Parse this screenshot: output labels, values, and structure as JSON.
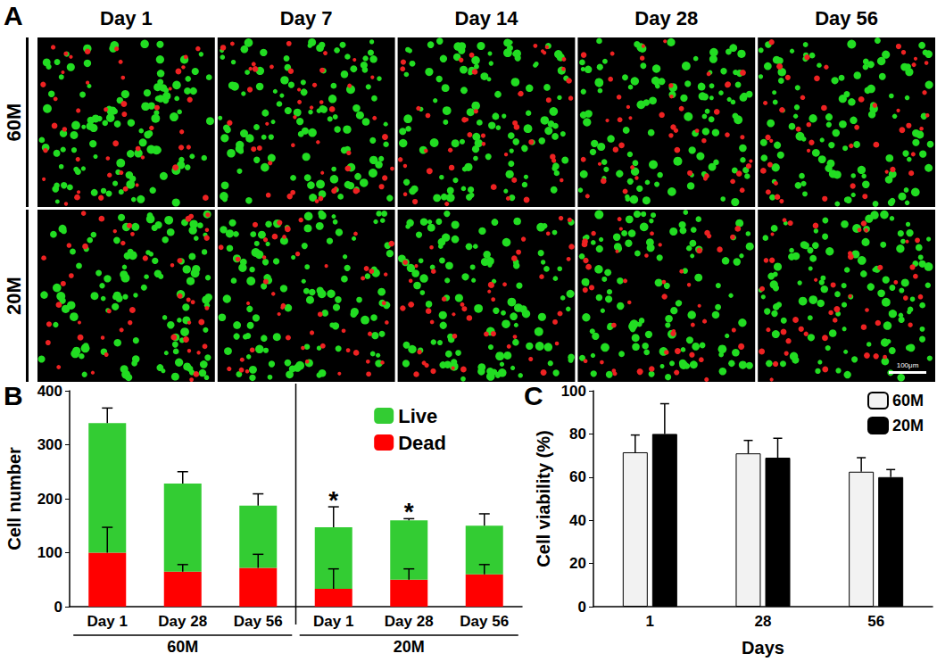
{
  "panel_a": {
    "title": "A",
    "columns": [
      "Day 1",
      "Day 7",
      "Day 14",
      "Day 28",
      "Day 56"
    ],
    "rows": [
      "60M",
      "20M"
    ],
    "scale_bar": "100μm"
  },
  "chart_data": [
    {
      "type": "bar",
      "title": "B",
      "ylabel": "Cell number",
      "categories": [
        "Day 1",
        "Day 28",
        "Day 56",
        "Day 1",
        "Day 28",
        "Day 56"
      ],
      "groups": [
        "60M",
        "60M",
        "60M",
        "20M",
        "20M",
        "20M"
      ],
      "series": [
        {
          "name": "Live",
          "color": "#33cc33",
          "values": [
            240,
            163,
            115,
            114,
            110,
            90
          ],
          "errors": [
            28,
            22,
            22,
            38,
            3,
            22
          ]
        },
        {
          "name": "Dead",
          "color": "#ff0000",
          "values": [
            100,
            65,
            72,
            33,
            50,
            60
          ],
          "errors": [
            47,
            13,
            25,
            37,
            20,
            18
          ]
        }
      ],
      "annotations": [
        null,
        null,
        null,
        "*",
        "*",
        null
      ],
      "stacked": true,
      "ylim": [
        0,
        400
      ],
      "yticks": [
        0,
        100,
        200,
        300,
        400
      ],
      "legend": "top-right",
      "grid": false
    },
    {
      "type": "bar",
      "title": "C",
      "xlabel": "Days",
      "ylabel": "Cell viability (%)",
      "categories": [
        "1",
        "28",
        "56"
      ],
      "series": [
        {
          "name": "60M",
          "color": "#f2f2f2",
          "values": [
            71.5,
            71,
            62.5
          ],
          "errors": [
            8,
            6,
            6.5
          ]
        },
        {
          "name": "20M",
          "color": "#000000",
          "values": [
            80,
            69,
            60
          ],
          "errors": [
            14,
            9,
            3.5
          ]
        }
      ],
      "stacked": false,
      "ylim": [
        0,
        100
      ],
      "yticks": [
        0,
        20,
        40,
        60,
        80,
        100
      ],
      "legend": "top-right",
      "grid": false
    }
  ]
}
